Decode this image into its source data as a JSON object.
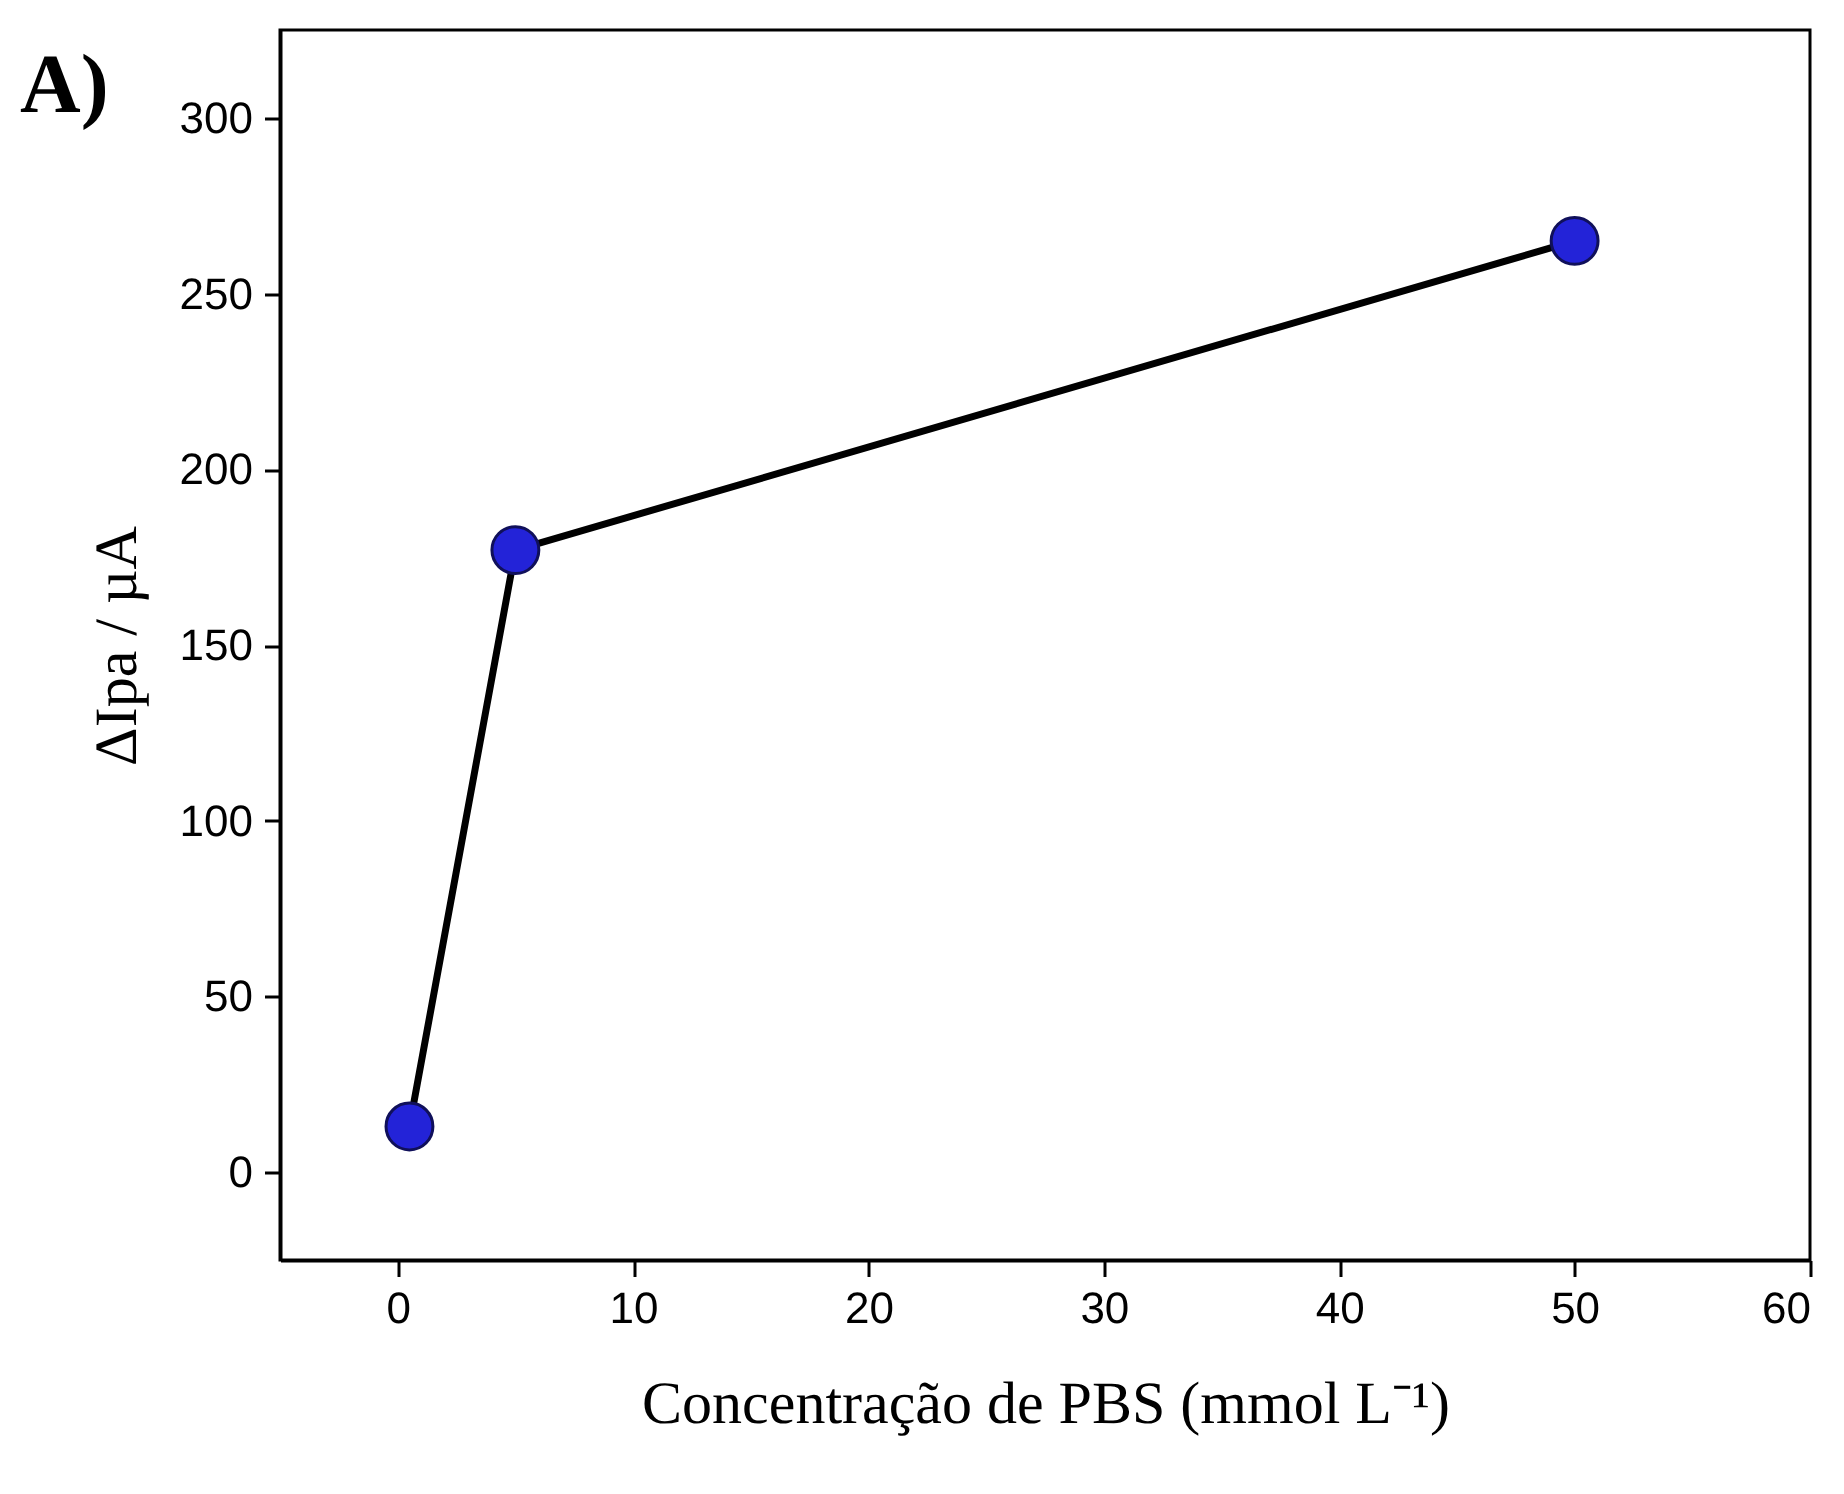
{
  "chart_data": {
    "type": "line",
    "title": "A)",
    "xlabel": "Concentração de PBS  (mmol L⁻¹)",
    "ylabel": "ΔIpa / µA",
    "x": [
      0.5,
      5,
      50
    ],
    "series": [
      {
        "color": "#2323d8",
        "values": [
          13,
          177,
          265
        ]
      }
    ],
    "xlim": [
      -5,
      60
    ],
    "xticks": [
      0,
      10,
      20,
      30,
      40,
      50,
      60
    ],
    "ylim": [
      -25,
      325
    ],
    "yticks": [
      0,
      50,
      100,
      150,
      200,
      250,
      300
    ],
    "grid": false,
    "marker": "circle",
    "line_style": "solid"
  }
}
